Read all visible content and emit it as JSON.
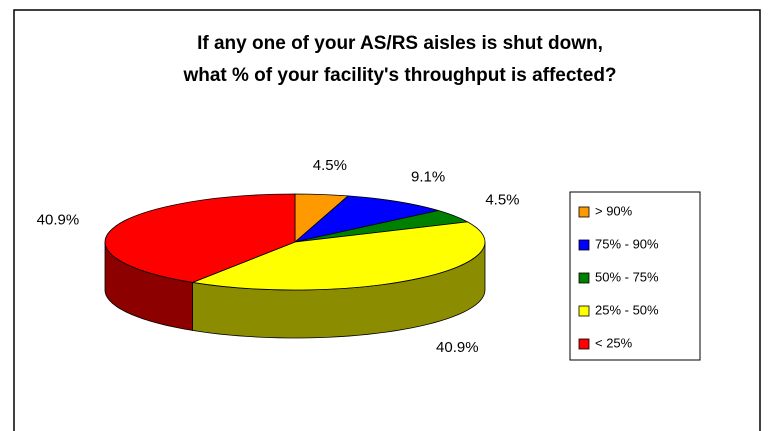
{
  "chart_data": {
    "type": "pie",
    "title": [
      "If any one of your AS/RS aisles is shut down,",
      "what % of your facility's throughput is affected?"
    ],
    "categories": [
      "> 90%",
      "75% - 90%",
      "50% - 75%",
      "25% - 50%",
      "< 25%"
    ],
    "values": [
      4.5,
      9.1,
      4.5,
      40.9,
      40.9
    ],
    "value_labels": [
      "4.5%",
      "9.1%",
      "4.5%",
      "40.9%",
      "40.9%"
    ],
    "colors": [
      "#ff9900",
      "#0000ff",
      "#008000",
      "#ffff00",
      "#ff0000"
    ],
    "legend": "right"
  }
}
